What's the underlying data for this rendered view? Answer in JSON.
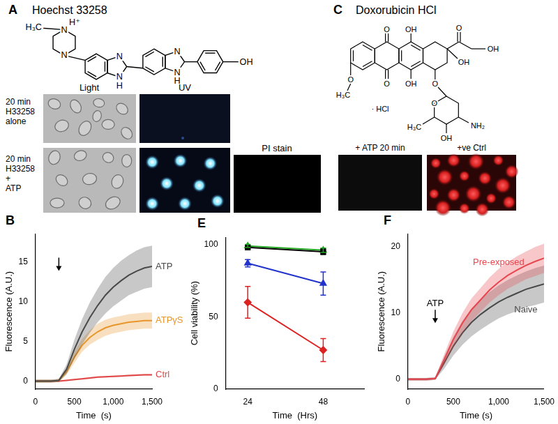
{
  "panels": {
    "A": {
      "label": "A",
      "title": "Hoechst 33258",
      "structure_labels": [
        "H₃C",
        "N",
        "H⁺",
        "N",
        "N",
        "N",
        "H",
        "N",
        "N",
        "H",
        "OH"
      ],
      "column_labels": [
        "Light",
        "UV"
      ],
      "row_labels": [
        [
          "20 min",
          "H33258",
          "alone"
        ],
        [
          "20 min",
          "H33258",
          "+",
          "ATP"
        ]
      ],
      "extra_column_label": "PI stain"
    },
    "C": {
      "label": "C",
      "title": "Doxorubicin HCl",
      "structure_labels": [
        "O",
        "OH",
        "O",
        "OH",
        "OH",
        "O",
        "OH",
        "O",
        "O",
        "H₃C",
        "OH",
        "NH₂",
        "O",
        "H₃C",
        "· HCl"
      ],
      "image_labels": [
        "+ ATP 20 min",
        "+ve Ctrl"
      ]
    }
  },
  "chart_data": [
    {
      "panel": "B",
      "type": "line",
      "x_label": "Time  (s)",
      "y_label": "Fluorescence (A.U.)",
      "x": [
        0,
        100,
        200,
        300,
        400,
        500,
        600,
        700,
        800,
        900,
        1000,
        1100,
        1200,
        1300,
        1400,
        1500
      ],
      "series": [
        {
          "name": "ATP",
          "color": "#4a4a4a",
          "values": [
            0,
            0,
            0,
            0.1,
            1.5,
            4,
            6.2,
            8,
            9.5,
            10.8,
            11.8,
            12.6,
            13.3,
            13.8,
            14.2,
            14.4
          ],
          "errors": [
            0.2,
            0.2,
            0.2,
            0.2,
            0.6,
            1.2,
            1.6,
            1.9,
            2.1,
            2.3,
            2.4,
            2.5,
            2.5,
            2.6,
            2.6,
            2.6
          ]
        },
        {
          "name": "ATPγS",
          "color": "#e8962a",
          "values": [
            0,
            0,
            0,
            0.1,
            1.2,
            3,
            4.5,
            5.5,
            6.2,
            6.7,
            7,
            7.2,
            7.4,
            7.5,
            7.6,
            7.6
          ],
          "errors": [
            0.2,
            0.2,
            0.2,
            0.2,
            0.4,
            0.7,
            0.8,
            0.9,
            1,
            1,
            1,
            1,
            1,
            1,
            1,
            1
          ]
        },
        {
          "name": "Ctrl",
          "color": "#e04848",
          "values": [
            0,
            0,
            0,
            0,
            0.1,
            0.2,
            0.3,
            0.4,
            0.5,
            0.55,
            0.6,
            0.65,
            0.7,
            0.75,
            0.8,
            0.8
          ],
          "errors": [
            0.1,
            0.1,
            0.1,
            0.1,
            0.1,
            0.1,
            0.1,
            0.1,
            0.1,
            0.1,
            0.1,
            0.1,
            0.1,
            0.1,
            0.1,
            0.1
          ]
        }
      ],
      "xlim": [
        0,
        1500
      ],
      "xticks": [
        0,
        500,
        1000,
        1500
      ],
      "ylim": [
        -1,
        18.5
      ],
      "yticks": [
        0,
        5,
        10,
        15
      ],
      "annotations": [
        {
          "x": 300,
          "y": 15.5
        }
      ]
    },
    {
      "panel": "E",
      "type": "line",
      "x_label": "Time  (Hrs)",
      "y_label": "Cell viability (%)",
      "x": [
        24,
        48
      ],
      "series": [
        {
          "color": "#000000",
          "marker": "square",
          "values": [
            98,
            95
          ],
          "errors": [
            1,
            2
          ]
        },
        {
          "color": "#22a822",
          "marker": "triangle",
          "values": [
            99,
            96
          ],
          "errors": [
            1,
            1.5
          ]
        },
        {
          "color": "#2233cc",
          "marker": "triangle",
          "values": [
            87,
            73
          ],
          "errors": [
            2.5,
            8
          ]
        },
        {
          "color": "#dd2222",
          "marker": "diamond",
          "values": [
            60,
            27
          ],
          "errors": [
            11,
            8
          ]
        }
      ],
      "xlim": [
        17,
        61
      ],
      "xticks": [
        24,
        48
      ],
      "ylim": [
        0,
        105
      ],
      "yticks": [
        0,
        50,
        100
      ]
    },
    {
      "panel": "F",
      "type": "line",
      "x_label": "Time (s)",
      "y_label": "Fluorescence (A.U.)",
      "x": [
        0,
        100,
        200,
        300,
        400,
        500,
        600,
        700,
        800,
        900,
        1000,
        1100,
        1200,
        1300,
        1400,
        1500
      ],
      "series": [
        {
          "name": "Pre-exposed",
          "color": "#e8474f",
          "values": [
            0,
            0,
            0,
            0.1,
            3,
            6,
            8.5,
            10.5,
            12,
            13.5,
            14.7,
            15.7,
            16.5,
            17.2,
            17.8,
            18.3
          ],
          "errors": [
            0.2,
            0.2,
            0.2,
            0.2,
            0.8,
            1.2,
            1.5,
            1.7,
            1.8,
            1.9,
            2,
            2,
            2.1,
            2.1,
            2.2,
            2.2
          ]
        },
        {
          "name": "Naive",
          "color": "#4a4a4a",
          "values": [
            0,
            0,
            0,
            0.1,
            2.5,
            5,
            7,
            8.6,
            9.8,
            10.8,
            11.7,
            12.4,
            13,
            13.6,
            14,
            14.4
          ],
          "errors": [
            0.2,
            0.2,
            0.2,
            0.2,
            0.9,
            1.4,
            1.8,
            2.1,
            2.3,
            2.4,
            2.5,
            2.6,
            2.7,
            2.7,
            2.8,
            2.8
          ]
        }
      ],
      "xlim": [
        0,
        1500
      ],
      "xticks": [
        0,
        500,
        1000,
        1500
      ],
      "ylim": [
        -1.5,
        22
      ],
      "yticks": [
        0,
        10,
        20
      ],
      "annotations": [
        {
          "text": "ATP",
          "x": 300,
          "y": 10.5
        }
      ]
    }
  ]
}
